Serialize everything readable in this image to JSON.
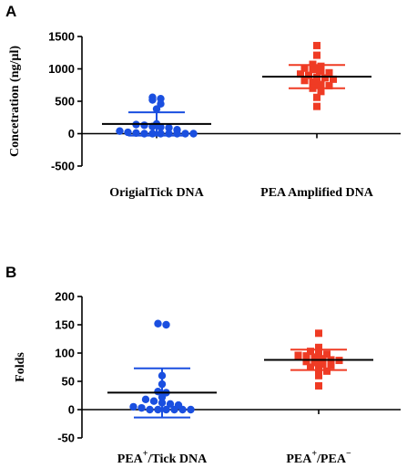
{
  "chart_data": [
    {
      "panel": "A",
      "type": "scatter",
      "ylabel": "Concetration (ng/µl)",
      "ylim": [
        -500,
        1500
      ],
      "yticks": [
        -500,
        0,
        500,
        1000,
        1500
      ],
      "categories": [
        "OrigialTick DNA",
        "PEA Amplified DNA"
      ],
      "series": [
        {
          "marker": "circle",
          "color": "#1a4fe0",
          "mean": 150,
          "sd_low": -30,
          "sd_high": 330,
          "values": [
            560,
            540,
            520,
            460,
            380,
            150,
            140,
            130,
            110,
            100,
            90,
            60,
            40,
            20,
            10,
            0,
            0,
            0,
            0,
            0,
            0,
            0
          ]
        },
        {
          "marker": "square",
          "color": "#ef3b24",
          "mean": 880,
          "sd_low": 700,
          "sd_high": 1060,
          "values": [
            1360,
            1210,
            1070,
            1040,
            1010,
            990,
            960,
            940,
            920,
            900,
            870,
            860,
            840,
            820,
            800,
            760,
            740,
            700,
            650,
            560,
            420
          ]
        }
      ]
    },
    {
      "panel": "B",
      "type": "scatter",
      "ylabel": "Folds",
      "ylim": [
        -50,
        200
      ],
      "yticks": [
        -50,
        0,
        50,
        100,
        150,
        200
      ],
      "categories": [
        {
          "base": "PEA",
          "sup": "+",
          "rest": "/Tick DNA"
        },
        {
          "base": "PEA",
          "sup": "+",
          "rest": "/PEA",
          "sup2": "−"
        }
      ],
      "series": [
        {
          "marker": "circle",
          "color": "#1a4fe0",
          "mean": 30,
          "sd_low": -14,
          "sd_high": 73,
          "values": [
            152,
            150,
            60,
            45,
            32,
            30,
            22,
            18,
            15,
            12,
            10,
            8,
            5,
            3,
            0,
            0,
            0,
            0,
            0,
            0
          ]
        },
        {
          "marker": "square",
          "color": "#ef3b24",
          "mean": 88,
          "sd_low": 70,
          "sd_high": 106,
          "values": [
            135,
            110,
            103,
            100,
            98,
            96,
            95,
            93,
            90,
            88,
            87,
            85,
            83,
            80,
            78,
            75,
            72,
            68,
            60,
            42
          ]
        }
      ]
    }
  ]
}
